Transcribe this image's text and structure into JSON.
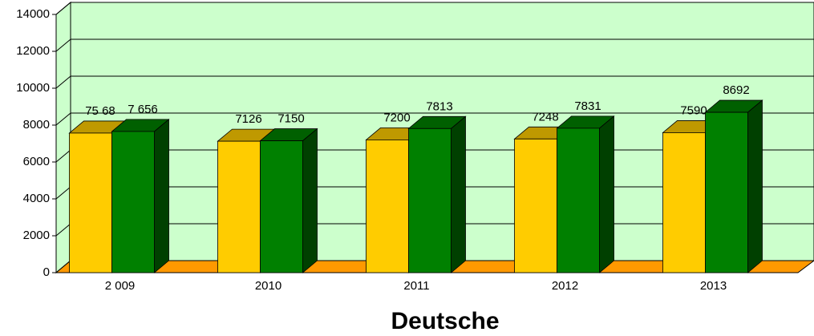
{
  "chart_data": {
    "type": "bar3d",
    "title": "Deutsche",
    "categories": [
      "2 009",
      "2010",
      "2011",
      "2012",
      "2013"
    ],
    "series": [
      {
        "color": "#ffcc00",
        "values": [
          7568,
          7126,
          7200,
          7248,
          7590
        ],
        "value_labels": [
          "75 68",
          "7126",
          "7200",
          "7248",
          "7590"
        ]
      },
      {
        "color": "#008000",
        "values": [
          7656,
          7150,
          7813,
          7831,
          8692
        ],
        "value_labels": [
          "7 656",
          "7150",
          "7813",
          "7831",
          "8692"
        ]
      }
    ],
    "ylim": [
      0,
      14000
    ],
    "yticks": [
      0,
      2000,
      4000,
      6000,
      8000,
      10000,
      12000,
      14000
    ],
    "grid": true,
    "wall_color": "#ccffcc",
    "floor_color": "#ff9900"
  }
}
